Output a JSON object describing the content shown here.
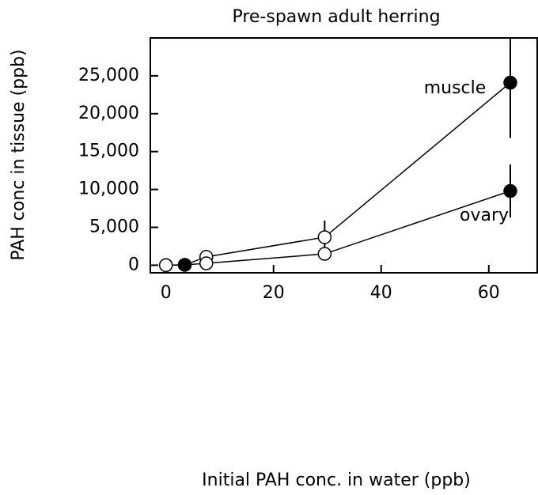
{
  "chart_data": {
    "type": "line",
    "title": "Pre-spawn adult herring",
    "xlabel": "Initial PAH conc. in water (ppb)",
    "ylabel": "PAH conc in tissue (ppb)",
    "x": [
      0,
      3.5,
      7.5,
      29.5,
      64
    ],
    "series": [
      {
        "name": "muscle",
        "color": "#000000",
        "values": [
          0,
          50,
          1100,
          3700,
          24100
        ],
        "errors": [
          0,
          0,
          700,
          2200,
          7300
        ],
        "filled": [
          false,
          true,
          false,
          false,
          true
        ]
      },
      {
        "name": "ovary",
        "color": "#000000",
        "values": [
          0,
          50,
          250,
          1500,
          9800
        ],
        "errors": [
          0,
          0,
          0,
          0,
          3500
        ],
        "filled": [
          false,
          true,
          false,
          false,
          true
        ]
      }
    ],
    "xlim": [
      -2.9,
      69
    ],
    "ylim": [
      -1000,
      30000
    ],
    "xticks": [
      0,
      20,
      40,
      60
    ],
    "yticks": [
      0,
      {
        "value": 5000,
        "label": "5,000"
      },
      {
        "value": 10000,
        "label": "10,000"
      },
      {
        "value": 15000,
        "label": "15,000"
      },
      {
        "value": 20000,
        "label": "20,000"
      },
      {
        "value": 25000,
        "label": "25,000"
      }
    ],
    "grid": false
  }
}
